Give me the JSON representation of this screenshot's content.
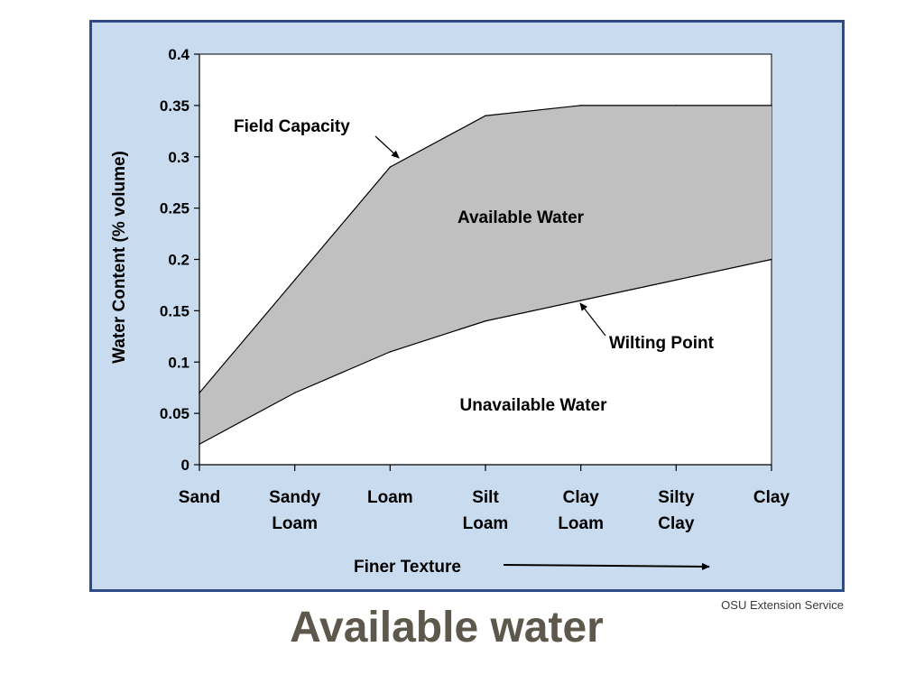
{
  "slide": {
    "title": "Available water",
    "source": "OSU Extension Service"
  },
  "chart_data": {
    "type": "area",
    "categories": [
      [
        "Sand"
      ],
      [
        "Sandy",
        "Loam"
      ],
      [
        "Loam"
      ],
      [
        "Silt",
        "Loam"
      ],
      [
        "Clay",
        "Loam"
      ],
      [
        "Silty",
        "Clay"
      ],
      [
        "Clay"
      ]
    ],
    "series": [
      {
        "name": "Field Capacity",
        "values": [
          0.07,
          0.18,
          0.29,
          0.34,
          0.35,
          0.35,
          0.35
        ]
      },
      {
        "name": "Wilting Point",
        "values": [
          0.02,
          0.07,
          0.11,
          0.14,
          0.16,
          0.18,
          0.2
        ]
      }
    ],
    "ylabel": "Water Content (% volume)",
    "ylim": [
      0,
      0.4
    ],
    "yticks": [
      "0",
      "0.05",
      "0.1",
      "0.15",
      "0.2",
      "0.25",
      "0.3",
      "0.35",
      "0.4"
    ],
    "x_note": "Finer Texture",
    "region_labels": {
      "between": "Available Water",
      "below": "Unavailable Water"
    },
    "grid": false,
    "colors": {
      "frame_background": "#c9dcef",
      "frame_border": "#2f4a86",
      "plot_background": "#ffffff",
      "available_fill": "#c0c0c0",
      "line": "#000000"
    }
  }
}
